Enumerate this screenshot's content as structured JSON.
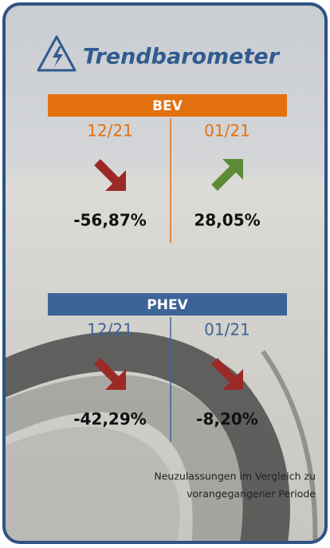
{
  "title": "Trendbarometer",
  "sections": [
    {
      "name": "BEV",
      "color": "#e2700f",
      "columns": [
        {
          "period": "12/21",
          "value": "-56,87%",
          "direction": "down",
          "arrow_color": "#9b2a26"
        },
        {
          "period": "01/21",
          "value": "28,05%",
          "direction": "up",
          "arrow_color": "#5e8a35"
        }
      ]
    },
    {
      "name": "PHEV",
      "color": "#3e6396",
      "columns": [
        {
          "period": "12/21",
          "value": "-42,29%",
          "direction": "down",
          "arrow_color": "#9b2a26"
        },
        {
          "period": "01/21",
          "value": "-8,20%",
          "direction": "down",
          "arrow_color": "#9b2a26"
        }
      ]
    }
  ],
  "footnote": [
    "Neuzulassungen im Vergleich zu",
    "vorangegangener Periode"
  ]
}
